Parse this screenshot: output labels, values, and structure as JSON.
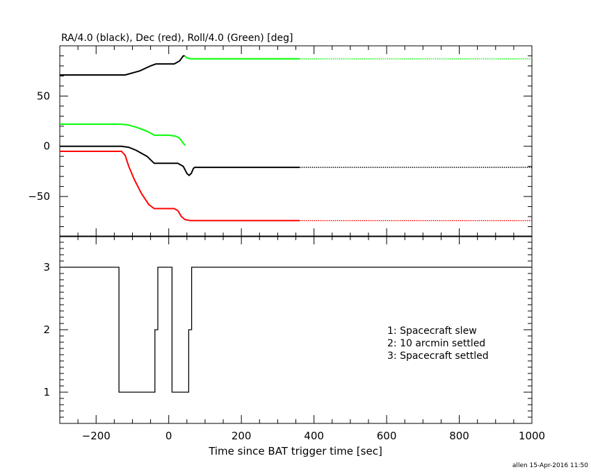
{
  "chart_data": [
    {
      "type": "line",
      "title": "RA/4.0 (black), Dec (red), Roll/4.0 (Green) [deg]",
      "xlim": [
        -300,
        1000
      ],
      "ylim": [
        -90,
        100
      ],
      "yticks_labeled": [
        50,
        0,
        -50
      ],
      "grid": false,
      "series": [
        {
          "name": "RA/4.0",
          "color": "#000000",
          "points": [
            [
              -300,
              71
            ],
            [
              -120,
              71
            ],
            [
              -80,
              75
            ],
            [
              -50,
              80
            ],
            [
              -35,
              82
            ],
            [
              15,
              82
            ],
            [
              30,
              85
            ],
            [
              40,
              90
            ],
            [
              44,
              90
            ]
          ]
        },
        {
          "name": "RA/4.0",
          "color": "#000000",
          "points": [
            [
              -300,
              0
            ],
            [
              -130,
              0
            ],
            [
              -110,
              -1
            ],
            [
              -90,
              -4
            ],
            [
              -60,
              -10
            ],
            [
              -40,
              -17
            ],
            [
              25,
              -17
            ],
            [
              40,
              -20
            ],
            [
              50,
              -27
            ],
            [
              56,
              -29
            ],
            [
              62,
              -27
            ],
            [
              68,
              -22
            ],
            [
              72,
              -21
            ],
            [
              360,
              -21
            ],
            [
              1000,
              -21
            ]
          ]
        },
        {
          "name": "Dec",
          "color": "#ff0000",
          "points": [
            [
              -300,
              -5
            ],
            [
              -130,
              -5
            ],
            [
              -120,
              -9
            ],
            [
              -110,
              -20
            ],
            [
              -95,
              -33
            ],
            [
              -75,
              -47
            ],
            [
              -55,
              -58
            ],
            [
              -40,
              -62
            ],
            [
              -20,
              -62
            ],
            [
              15,
              -62
            ],
            [
              25,
              -64
            ],
            [
              35,
              -70
            ],
            [
              45,
              -73
            ],
            [
              60,
              -74
            ],
            [
              360,
              -74
            ],
            [
              1000,
              -74
            ]
          ]
        },
        {
          "name": "Roll/4.0",
          "color": "#00ff00",
          "points": [
            [
              -300,
              22
            ],
            [
              -130,
              22
            ],
            [
              -110,
              21
            ],
            [
              -90,
              19
            ],
            [
              -60,
              15
            ],
            [
              -40,
              11
            ],
            [
              0,
              11
            ],
            [
              20,
              10
            ],
            [
              30,
              8
            ],
            [
              40,
              3
            ],
            [
              45,
              1
            ]
          ]
        },
        {
          "name": "Roll/4.0",
          "color": "#00ff00",
          "points": [
            [
              44,
              90
            ],
            [
              50,
              88
            ],
            [
              60,
              87
            ],
            [
              360,
              87
            ],
            [
              1000,
              87
            ]
          ]
        }
      ],
      "dotted_after_x": 360
    },
    {
      "type": "line",
      "title": "",
      "xlabel": "Time since BAT trigger time [sec]",
      "xlim": [
        -300,
        1000
      ],
      "ylim": [
        0.5,
        3.5
      ],
      "xticks": [
        -200,
        0,
        200,
        400,
        600,
        800,
        1000
      ],
      "yticks": [
        1,
        2,
        3
      ],
      "grid": false,
      "legend": [
        "1: Spacecraft slew",
        "2: 10 arcmin settled",
        "3: Spacecraft settled"
      ],
      "series": [
        {
          "color": "#000000",
          "step": true,
          "points": [
            [
              -300,
              3
            ],
            [
              -137,
              3
            ],
            [
              -137,
              1
            ],
            [
              -38,
              1
            ],
            [
              -38,
              2
            ],
            [
              -30,
              2
            ],
            [
              -30,
              3
            ],
            [
              9,
              3
            ],
            [
              9,
              1
            ],
            [
              55,
              1
            ],
            [
              55,
              2
            ],
            [
              63,
              2
            ],
            [
              63,
              3
            ],
            [
              1000,
              3
            ]
          ]
        }
      ]
    }
  ],
  "footer": "allen 15-Apr-2016 11:50"
}
